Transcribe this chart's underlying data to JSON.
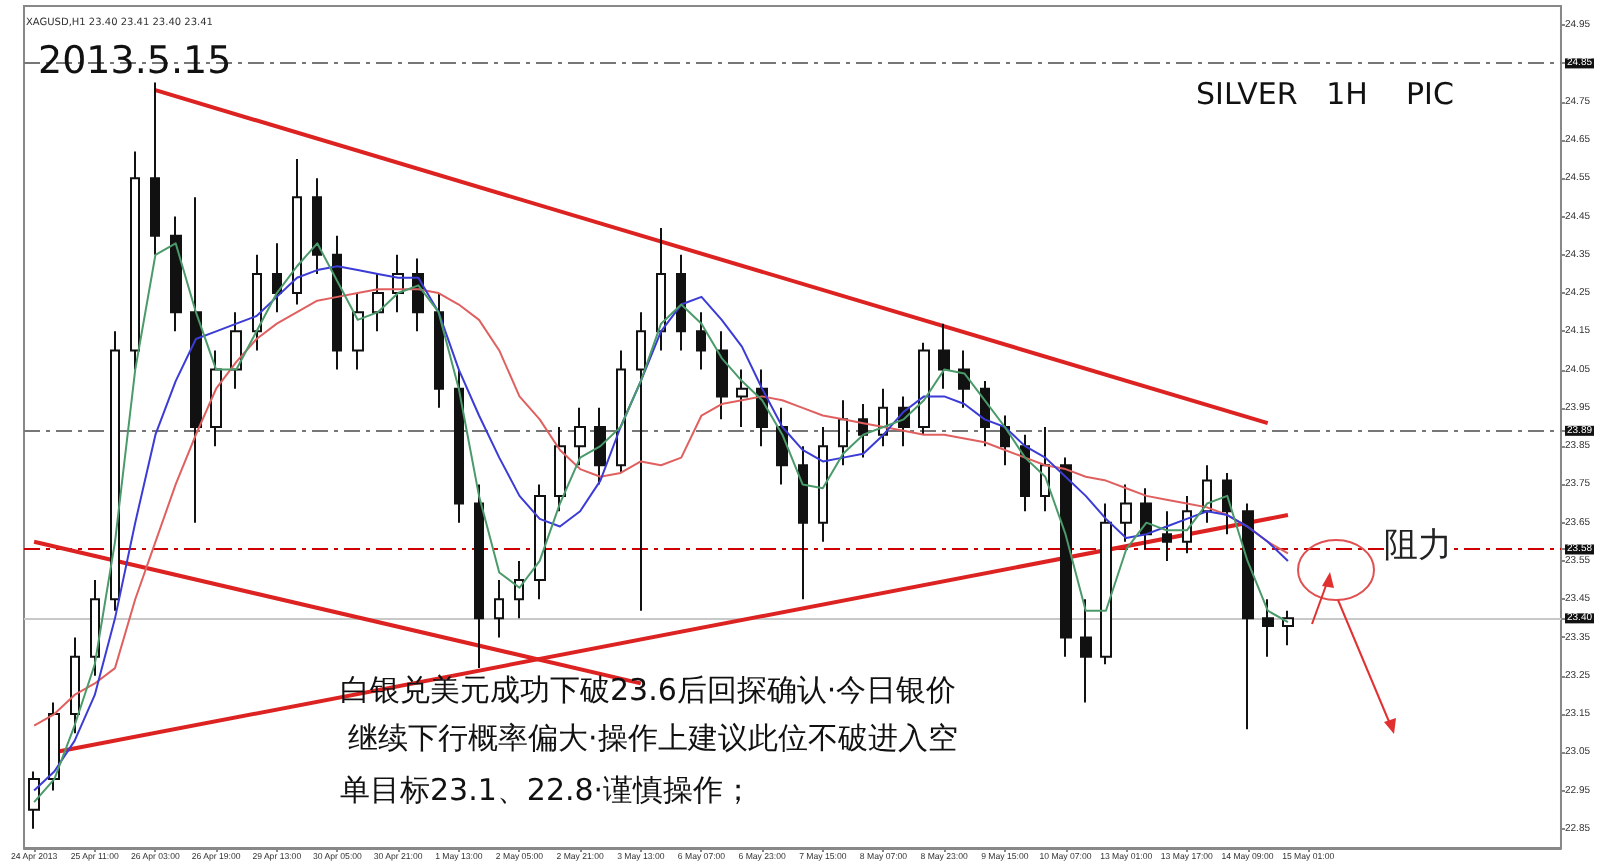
{
  "chart_data": {
    "type": "candlestick",
    "title": "2013.5.15",
    "subtitle": "XAGUSD,H1 23.40 23.41 23.40 23.41",
    "annotations": [
      "SILVER   1H    PIC",
      "白银兑美元成功下破23.6后回探确认·今日银价",
      "继续下行概率偏大·操作上建议此位不破进入空",
      "单目标23.1、22.8·谨慎操作；"
    ],
    "categories": [
      "24 Apr 2013",
      null,
      null,
      "25 Apr 11:00",
      null,
      null,
      "26 Apr 03:00",
      null,
      null,
      "26 Apr 19:00",
      null,
      null,
      "29 Apr 13:00",
      null,
      null,
      "30 Apr 05:00",
      null,
      null,
      "30 Apr 21:00",
      null,
      null,
      "1 May 13:00",
      null,
      null,
      "2 May 05:00",
      null,
      null,
      "2 May 21:00",
      null,
      null,
      "3 May 13:00",
      null,
      null,
      "6 May 07:00",
      null,
      null,
      "6 May 23:00",
      null,
      null,
      "7 May 15:00",
      null,
      null,
      "8 May 07:00",
      null,
      null,
      "8 May 23:00",
      null,
      null,
      "9 May 15:00",
      null,
      null,
      "10 May 07:00",
      null,
      null,
      "13 May 01:00",
      null,
      null,
      "13 May 17:00",
      null,
      null,
      "14 May 09:00",
      null,
      null,
      "15 May 01:00",
      null,
      null,
      null,
      null,
      null,
      null,
      null,
      null,
      null,
      null,
      null,
      null
    ],
    "ohlc": [
      [
        22.9,
        23.0,
        22.85,
        22.98
      ],
      [
        22.98,
        23.18,
        22.95,
        23.15
      ],
      [
        23.15,
        23.35,
        23.1,
        23.3
      ],
      [
        23.3,
        23.5,
        23.25,
        23.45
      ],
      [
        23.45,
        24.15,
        23.42,
        24.1
      ],
      [
        24.1,
        24.62,
        24.05,
        24.55
      ],
      [
        24.55,
        24.8,
        24.35,
        24.4
      ],
      [
        24.4,
        24.45,
        24.15,
        24.2
      ],
      [
        24.2,
        24.5,
        23.65,
        23.9
      ],
      [
        23.9,
        24.1,
        23.85,
        24.05
      ],
      [
        24.05,
        24.2,
        24.0,
        24.15
      ],
      [
        24.15,
        24.35,
        24.1,
        24.3
      ],
      [
        24.3,
        24.38,
        24.2,
        24.25
      ],
      [
        24.25,
        24.6,
        24.22,
        24.5
      ],
      [
        24.5,
        24.55,
        24.3,
        24.35
      ],
      [
        24.35,
        24.4,
        24.05,
        24.1
      ],
      [
        24.1,
        24.25,
        24.05,
        24.2
      ],
      [
        24.2,
        24.3,
        24.15,
        24.25
      ],
      [
        24.25,
        24.35,
        24.2,
        24.3
      ],
      [
        24.3,
        24.34,
        24.15,
        24.2
      ],
      [
        24.2,
        24.25,
        23.95,
        24.0
      ],
      [
        24.0,
        24.05,
        23.65,
        23.7
      ],
      [
        23.7,
        23.75,
        23.27,
        23.4
      ],
      [
        23.4,
        23.5,
        23.35,
        23.45
      ],
      [
        23.45,
        23.55,
        23.4,
        23.5
      ],
      [
        23.5,
        23.75,
        23.45,
        23.72
      ],
      [
        23.72,
        23.9,
        23.68,
        23.85
      ],
      [
        23.85,
        23.95,
        23.8,
        23.9
      ],
      [
        23.9,
        23.95,
        23.75,
        23.8
      ],
      [
        23.8,
        24.1,
        23.78,
        24.05
      ],
      [
        24.05,
        24.2,
        23.42,
        24.15
      ],
      [
        24.15,
        24.42,
        24.1,
        24.3
      ],
      [
        24.3,
        24.35,
        24.1,
        24.15
      ],
      [
        24.15,
        24.2,
        24.05,
        24.1
      ],
      [
        24.1,
        24.15,
        23.92,
        23.98
      ],
      [
        23.98,
        24.05,
        23.9,
        24.0
      ],
      [
        24.0,
        24.05,
        23.85,
        23.9
      ],
      [
        23.9,
        23.95,
        23.75,
        23.8
      ],
      [
        23.8,
        23.85,
        23.45,
        23.65
      ],
      [
        23.65,
        23.9,
        23.6,
        23.85
      ],
      [
        23.85,
        23.97,
        23.8,
        23.92
      ],
      [
        23.92,
        23.96,
        23.82,
        23.88
      ],
      [
        23.88,
        24.0,
        23.85,
        23.95
      ],
      [
        23.95,
        23.98,
        23.85,
        23.9
      ],
      [
        23.9,
        24.12,
        23.88,
        24.1
      ],
      [
        24.1,
        24.17,
        24.0,
        24.05
      ],
      [
        24.05,
        24.1,
        23.95,
        24.0
      ],
      [
        24.0,
        24.02,
        23.85,
        23.9
      ],
      [
        23.9,
        23.93,
        23.8,
        23.85
      ],
      [
        23.85,
        23.88,
        23.68,
        23.72
      ],
      [
        23.72,
        23.9,
        23.68,
        23.8
      ],
      [
        23.8,
        23.82,
        23.3,
        23.35
      ],
      [
        23.35,
        23.45,
        23.18,
        23.3
      ],
      [
        23.3,
        23.7,
        23.28,
        23.65
      ],
      [
        23.65,
        23.75,
        23.6,
        23.7
      ],
      [
        23.7,
        23.74,
        23.58,
        23.62
      ],
      [
        23.62,
        23.68,
        23.55,
        23.6
      ],
      [
        23.6,
        23.72,
        23.57,
        23.68
      ],
      [
        23.68,
        23.8,
        23.65,
        23.76
      ],
      [
        23.76,
        23.78,
        23.62,
        23.68
      ],
      [
        23.68,
        23.7,
        23.11,
        23.4
      ],
      [
        23.4,
        23.45,
        23.3,
        23.38
      ],
      [
        23.38,
        23.42,
        23.33,
        23.4
      ],
      null,
      null,
      null,
      null,
      null,
      null,
      null,
      null,
      null,
      null,
      null,
      null,
      null
    ],
    "series": [
      {
        "type": "line",
        "color": "#e06060",
        "values": [
          23.12,
          23.15,
          23.2,
          23.23,
          23.27,
          23.45,
          23.6,
          23.75,
          23.88,
          24.0,
          24.07,
          24.13,
          24.17,
          24.2,
          24.23,
          24.24,
          24.25,
          24.26,
          24.26,
          24.26,
          24.25,
          24.22,
          24.18,
          24.1,
          23.98,
          23.92,
          23.84,
          23.79,
          23.77,
          23.78,
          23.81,
          23.8,
          23.82,
          23.93,
          23.96,
          23.97,
          23.98,
          23.97,
          23.95,
          23.93,
          23.92,
          23.91,
          23.9,
          23.89,
          23.88,
          23.88,
          23.87,
          23.86,
          23.84,
          23.82,
          23.8,
          23.79,
          23.77,
          23.76,
          23.74,
          23.72,
          23.71,
          23.7,
          23.69,
          23.67,
          23.64,
          23.6,
          23.57,
          null,
          null,
          null,
          null,
          null,
          null,
          null,
          null,
          null,
          null,
          null,
          null,
          null
        ]
      },
      {
        "type": "line",
        "color": "#3b3bd6",
        "values": [
          22.95,
          23.0,
          23.08,
          23.2,
          23.4,
          23.65,
          23.88,
          24.02,
          24.13,
          24.15,
          24.17,
          24.19,
          24.24,
          24.29,
          24.31,
          24.32,
          24.31,
          24.3,
          24.29,
          24.29,
          24.2,
          24.05,
          23.93,
          23.82,
          23.72,
          23.66,
          23.64,
          23.68,
          23.76,
          23.9,
          24.02,
          24.15,
          24.22,
          24.24,
          24.18,
          24.11,
          24.0,
          23.9,
          23.84,
          23.81,
          23.82,
          23.83,
          23.88,
          23.94,
          23.98,
          23.98,
          23.96,
          23.92,
          23.9,
          23.85,
          23.82,
          23.77,
          23.72,
          23.66,
          23.61,
          23.62,
          23.64,
          23.66,
          23.68,
          23.67,
          23.64,
          23.6,
          23.55,
          null,
          null,
          null,
          null,
          null,
          null,
          null,
          null,
          null,
          null,
          null,
          null,
          null
        ]
      },
      {
        "type": "line",
        "color": "#4a9a6a",
        "values": [
          22.92,
          22.98,
          23.12,
          23.28,
          23.6,
          24.05,
          24.35,
          24.38,
          24.2,
          24.05,
          24.05,
          24.15,
          24.25,
          24.32,
          24.38,
          24.28,
          24.18,
          24.2,
          24.25,
          24.27,
          24.2,
          24.0,
          23.72,
          23.52,
          23.48,
          23.55,
          23.7,
          23.82,
          23.85,
          23.9,
          24.02,
          24.17,
          24.22,
          24.17,
          24.08,
          24.02,
          23.97,
          23.88,
          23.75,
          23.74,
          23.83,
          23.88,
          23.9,
          23.92,
          23.97,
          24.05,
          24.04,
          23.97,
          23.9,
          23.82,
          23.77,
          23.62,
          23.42,
          23.42,
          23.58,
          23.65,
          23.63,
          23.63,
          23.7,
          23.72,
          23.55,
          23.42,
          23.39,
          null,
          null,
          null,
          null,
          null,
          null,
          null,
          null,
          null,
          null,
          null,
          null,
          null
        ]
      },
      {
        "type": "line",
        "color": "#dd2222",
        "values": [
          null,
          null,
          null,
          null,
          null,
          null,
          24.78,
          null,
          null,
          null,
          null,
          null,
          null,
          null,
          null,
          null,
          null,
          null,
          null,
          null,
          null,
          null,
          null,
          null,
          null,
          null,
          null,
          null,
          null,
          null,
          null,
          null,
          null,
          null,
          null,
          null,
          null,
          null,
          null,
          null,
          null,
          null,
          null,
          null,
          null,
          null,
          null,
          null,
          null,
          null,
          null,
          null,
          null,
          null,
          null,
          null,
          null,
          null,
          null,
          null,
          null,
          23.91,
          null,
          null,
          null,
          null,
          null,
          null,
          null,
          null,
          null,
          null,
          null,
          null,
          null,
          null
        ]
      },
      {
        "type": "line",
        "color": "#dd2222",
        "values": [
          null,
          23.05,
          null,
          null,
          null,
          null,
          null,
          null,
          null,
          null,
          null,
          null,
          null,
          null,
          null,
          null,
          null,
          null,
          null,
          null,
          null,
          null,
          null,
          null,
          null,
          null,
          null,
          null,
          null,
          null,
          null,
          null,
          null,
          null,
          null,
          null,
          null,
          null,
          null,
          null,
          null,
          null,
          null,
          null,
          null,
          null,
          null,
          null,
          null,
          null,
          null,
          null,
          null,
          null,
          null,
          null,
          null,
          null,
          null,
          null,
          null,
          null,
          23.67,
          null,
          null,
          null,
          null,
          null,
          null,
          null,
          null,
          null,
          null,
          null,
          null,
          null
        ]
      },
      {
        "type": "line",
        "color": "#dd2222",
        "values": [
          23.6,
          null,
          null,
          null,
          null,
          null,
          null,
          null,
          null,
          null,
          null,
          null,
          null,
          null,
          null,
          null,
          null,
          null,
          null,
          null,
          null,
          null,
          null,
          null,
          null,
          null,
          null,
          null,
          null,
          null,
          23.23,
          null,
          null,
          null,
          null,
          null,
          null,
          null,
          null,
          null,
          null,
          null,
          null,
          null,
          null,
          null,
          null,
          null,
          null,
          null,
          null,
          null,
          null,
          null,
          null,
          null,
          null,
          null,
          null,
          null,
          null,
          null,
          null,
          null,
          null,
          null,
          null,
          null,
          null,
          null,
          null,
          null,
          null,
          null,
          null,
          null
        ]
      }
    ],
    "ylim": [
      22.8,
      25.0
    ],
    "yticks": [
      22.85,
      22.95,
      23.05,
      23.15,
      23.25,
      23.35,
      {
        "value": 23.4,
        "label": "23.40"
      },
      23.45,
      23.55,
      23.58,
      23.65,
      23.75,
      23.85,
      23.89,
      23.95,
      24.05,
      24.15,
      24.25,
      24.35,
      24.45,
      24.55,
      24.65,
      24.75,
      24.85,
      24.95
    ],
    "ref_lines": [
      {
        "axis": "y",
        "value": 24.85,
        "color": "#777777",
        "line_style": "dashdot"
      },
      {
        "axis": "y",
        "value": 23.89,
        "color": "#777777",
        "line_style": "dashdot"
      },
      {
        "axis": "y",
        "value": 23.58,
        "label": "阻力",
        "color": "#cc0000",
        "line_style": "dashdot"
      },
      {
        "axis": "y",
        "value": 23.4,
        "color": "#c8c8c8",
        "line_style": "solid"
      }
    ],
    "grid": false,
    "marker": "none"
  }
}
